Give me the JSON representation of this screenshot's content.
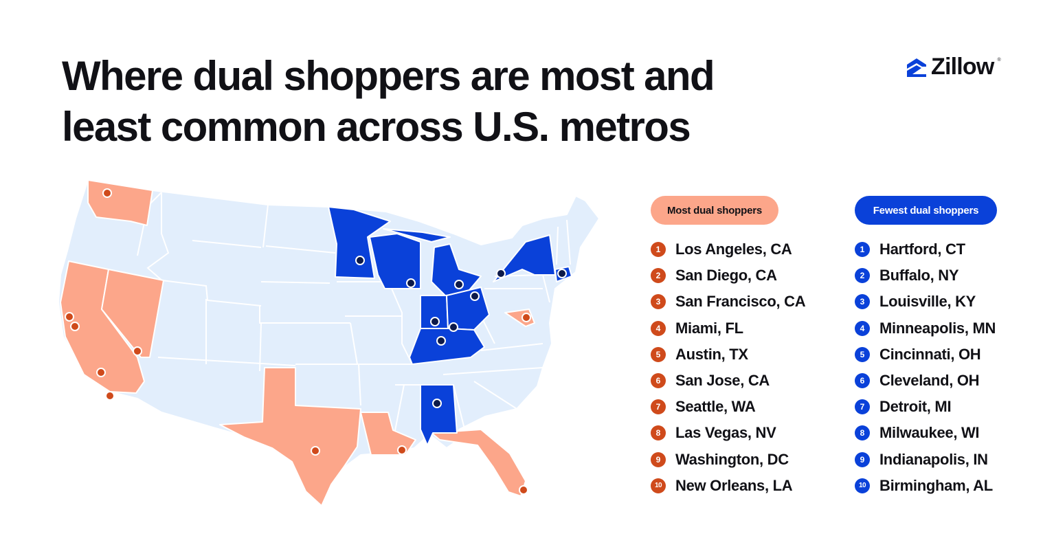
{
  "title": {
    "line1": "Where dual shoppers are most and",
    "line2": "least common across U.S. metros"
  },
  "logo": {
    "text": "Zillow",
    "registered": "®",
    "icon": "zillow-house-icon"
  },
  "colors": {
    "most": "#fca68a",
    "most_marker": "#cf4a1b",
    "fewest": "#0a41d9",
    "fewest_marker": "#0d1a4a",
    "other_states": "#e2eefc",
    "borders": "#ffffff"
  },
  "legend": {
    "most_label": "Most dual shoppers",
    "fewest_label": "Fewest dual shoppers"
  },
  "most": [
    {
      "rank": "1",
      "metro": "Los Angeles, CA"
    },
    {
      "rank": "2",
      "metro": "San Diego, CA"
    },
    {
      "rank": "3",
      "metro": "San Francisco, CA"
    },
    {
      "rank": "4",
      "metro": "Miami, FL"
    },
    {
      "rank": "5",
      "metro": "Austin, TX"
    },
    {
      "rank": "6",
      "metro": "San Jose, CA"
    },
    {
      "rank": "7",
      "metro": "Seattle, WA"
    },
    {
      "rank": "8",
      "metro": "Las Vegas, NV"
    },
    {
      "rank": "9",
      "metro": "Washington, DC"
    },
    {
      "rank": "10",
      "metro": "New Orleans, LA"
    }
  ],
  "fewest": [
    {
      "rank": "1",
      "metro": "Hartford, CT"
    },
    {
      "rank": "2",
      "metro": "Buffalo, NY"
    },
    {
      "rank": "3",
      "metro": "Louisville, KY"
    },
    {
      "rank": "4",
      "metro": "Minneapolis, MN"
    },
    {
      "rank": "5",
      "metro": "Cincinnati, OH"
    },
    {
      "rank": "6",
      "metro": "Cleveland, OH"
    },
    {
      "rank": "7",
      "metro": "Detroit, MI"
    },
    {
      "rank": "8",
      "metro": "Milwaukee, WI"
    },
    {
      "rank": "9",
      "metro": "Indianapolis, IN"
    },
    {
      "rank": "10",
      "metro": "Birmingham, AL"
    }
  ]
}
